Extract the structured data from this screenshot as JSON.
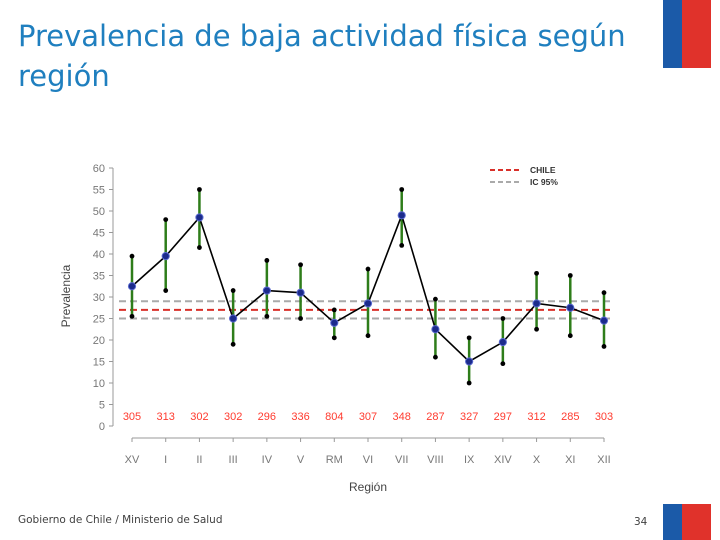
{
  "slide": {
    "title": "Prevalencia de baja actividad física según región",
    "footer": "Gobierno de Chile / Ministerio de Salud",
    "page_number": "34"
  },
  "colors": {
    "title": "#1f7fbf",
    "flag_blue": "#1b5aa8",
    "flag_red": "#e0322b",
    "point_line": "#000000",
    "point_marker": "#1c2b8c",
    "ci_bar": "#2e7d1a",
    "chile_line": "#d9302a",
    "ic_line": "#aaaaaa",
    "n_labels": "#ff3b2f"
  },
  "chart_data": {
    "type": "line",
    "xlabel": "Región",
    "ylabel": "Prevalencia",
    "ylim": [
      0,
      60
    ],
    "yticks": [
      0,
      5,
      10,
      15,
      20,
      25,
      30,
      35,
      40,
      45,
      50,
      55,
      60
    ],
    "categories": [
      "XV",
      "I",
      "II",
      "III",
      "IV",
      "V",
      "RM",
      "VI",
      "VII",
      "VIII",
      "IX",
      "XIV",
      "X",
      "XI",
      "XII"
    ],
    "values": [
      32.5,
      39.5,
      48.5,
      25,
      31.5,
      31,
      24,
      28.5,
      49,
      22.5,
      15,
      19.5,
      28.5,
      27.5,
      24.5
    ],
    "ci_lower": [
      25.5,
      31.5,
      41.5,
      19,
      25.5,
      25,
      20.5,
      21,
      42,
      16,
      10,
      14.5,
      22.5,
      21,
      18.5
    ],
    "ci_upper": [
      39.5,
      48,
      55,
      31.5,
      38.5,
      37.5,
      27,
      36.5,
      55,
      29.5,
      20.5,
      25,
      35.5,
      35,
      31
    ],
    "n_values": [
      "305",
      "313",
      "302",
      "302",
      "296",
      "336",
      "804",
      "307",
      "348",
      "287",
      "327",
      "297",
      "312",
      "285",
      "303"
    ],
    "reference_lines": [
      {
        "name": "CHILE",
        "value": 27
      },
      {
        "name": "IC 95%",
        "value": 29
      },
      {
        "name": "IC 95%",
        "value": 25
      }
    ],
    "legend": [
      "CHILE",
      "IC 95%"
    ],
    "legend_position": "top-right"
  }
}
